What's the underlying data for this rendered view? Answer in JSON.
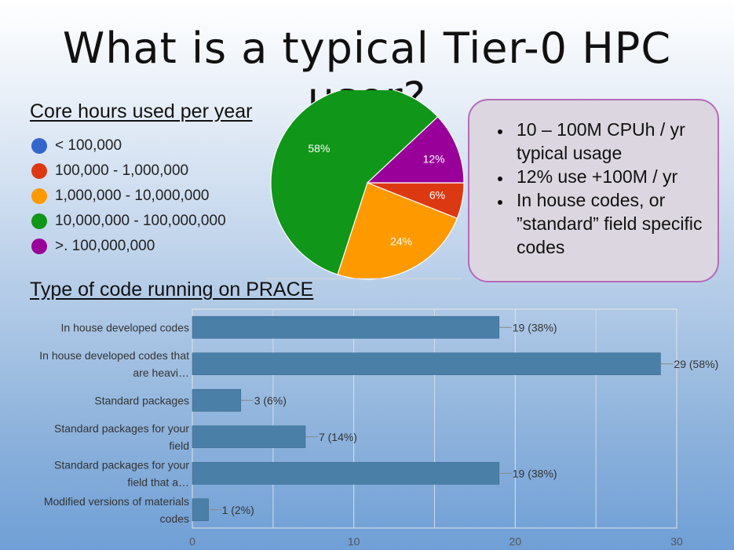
{
  "slide": {
    "title": "What is a typical Tier-0 HPC user?"
  },
  "pie_section": {
    "heading": "Core hours used per year"
  },
  "bar_section": {
    "heading": "Type of code running on PRACE"
  },
  "info_box": {
    "bullets": [
      "10 – 100M CPUh / yr typical usage",
      "12% use +100M / yr",
      "In house codes, or ”standard” field specific codes"
    ]
  },
  "chart_data": [
    {
      "type": "pie",
      "title": "",
      "legend_position": "left",
      "slices": [
        {
          "label": "< 100,000",
          "value": 0,
          "color": "#3366cc",
          "display": ""
        },
        {
          "label": "100,000 - 1,000,000",
          "value": 6,
          "color": "#dc3912",
          "display": "6%"
        },
        {
          "label": "1,000,000 - 10,000,000",
          "value": 24,
          "color": "#ff9900",
          "display": "24%"
        },
        {
          "label": "10,000,000 - 100,000,000",
          "value": 58,
          "color": "#109618",
          "display": "58%"
        },
        {
          "label": ">. 100,000,000",
          "value": 12,
          "color": "#990099",
          "display": "12%"
        }
      ]
    },
    {
      "type": "bar",
      "orientation": "horizontal",
      "title": "",
      "bar_color": "#4a7fa8",
      "xlim": [
        0,
        30
      ],
      "ticks": [
        0,
        10,
        20,
        30
      ],
      "grid": true,
      "categories": [
        [
          "In house developed codes"
        ],
        [
          "In house developed codes that",
          "are heavi…"
        ],
        [
          "Standard packages"
        ],
        [
          "Standard packages for your",
          "field"
        ],
        [
          "Standard packages for your",
          "field that a…"
        ],
        [
          "Modified versions of materials",
          "codes"
        ]
      ],
      "values": [
        19,
        29,
        3,
        7,
        19,
        1
      ],
      "value_labels": [
        "19 (38%)",
        "29 (58%)",
        "3 (6%)",
        "7 (14%)",
        "19 (38%)",
        "1 (2%)"
      ]
    }
  ]
}
